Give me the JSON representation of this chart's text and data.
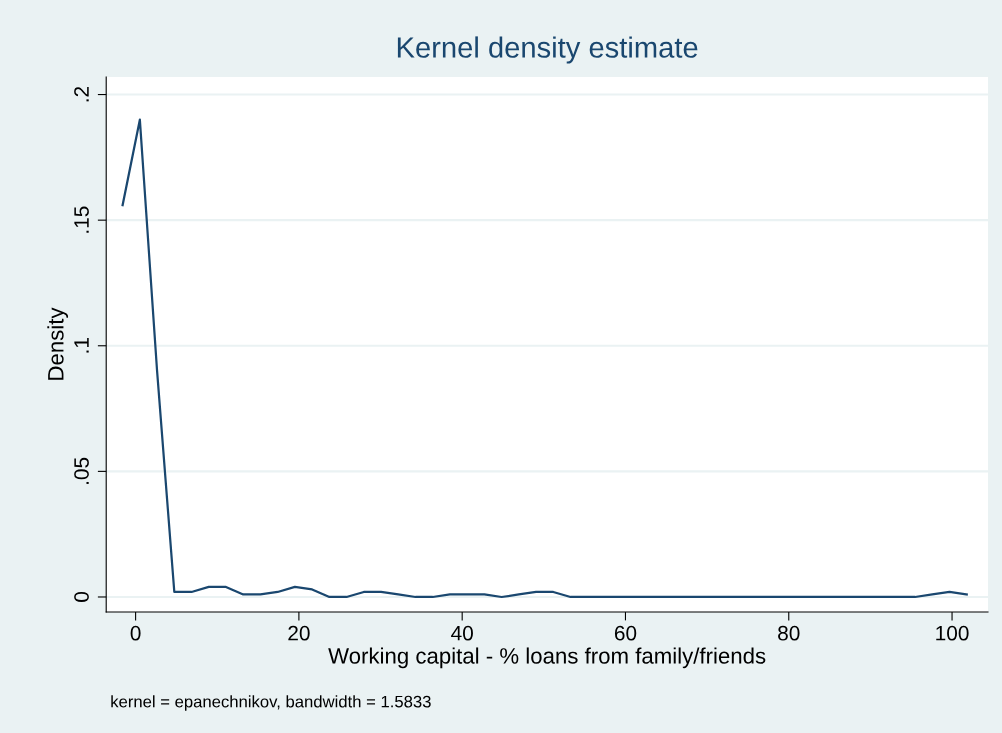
{
  "chart_data": {
    "type": "line",
    "title": "Kernel density estimate",
    "xlabel": "Working capital - % loans from family/friends",
    "ylabel": "Density",
    "annotations": [
      "kernel = epanechnikov, bandwidth = 1.5833"
    ],
    "x": [
      -1.59,
      0.52,
      2.63,
      4.74,
      6.85,
      8.96,
      11.07,
      13.18,
      15.29,
      17.4,
      19.51,
      21.62,
      23.73,
      25.84,
      27.95,
      30.06,
      32.17,
      34.28,
      36.39,
      38.5,
      40.61,
      42.72,
      44.83,
      46.94,
      49.05,
      51.16,
      53.27,
      55.38,
      57.49,
      59.6,
      61.71,
      63.82,
      65.93,
      68.04,
      70.15,
      72.26,
      74.37,
      76.48,
      78.59,
      80.7,
      82.81,
      84.92,
      87.03,
      89.14,
      91.25,
      93.36,
      95.47,
      97.58,
      99.69,
      101.8
    ],
    "series": [
      {
        "color": "#1a476f",
        "values": [
          0.156,
          0.19,
          0.09,
          0.002,
          0.002,
          0.004,
          0.004,
          0.001,
          0.001,
          0.002,
          0.004,
          0.003,
          0,
          0,
          0.002,
          0.002,
          0.001,
          0,
          0,
          0.001,
          0.001,
          0.001,
          0,
          0.001,
          0.002,
          0.002,
          0,
          0,
          0,
          0,
          0,
          0,
          0,
          0,
          0,
          0,
          0,
          0,
          0,
          0,
          0,
          0,
          0,
          0,
          0,
          0,
          0,
          0.001,
          0.002,
          0.001
        ]
      }
    ],
    "xlim": [
      -3.6,
      104.4
    ],
    "ylim": [
      -0.006,
      0.207
    ],
    "xticks": [
      0,
      20,
      40,
      60,
      80,
      100
    ],
    "yticks": [
      {
        "value": 0,
        "label": "0"
      },
      {
        "value": 0.05,
        "label": ".05"
      },
      {
        "value": 0.1,
        "label": ".1"
      },
      {
        "value": 0.15,
        "label": ".15"
      },
      {
        "value": 0.2,
        "label": ".2"
      }
    ],
    "grid": "y",
    "legend": false,
    "marker": "none",
    "line_style": "solid"
  }
}
